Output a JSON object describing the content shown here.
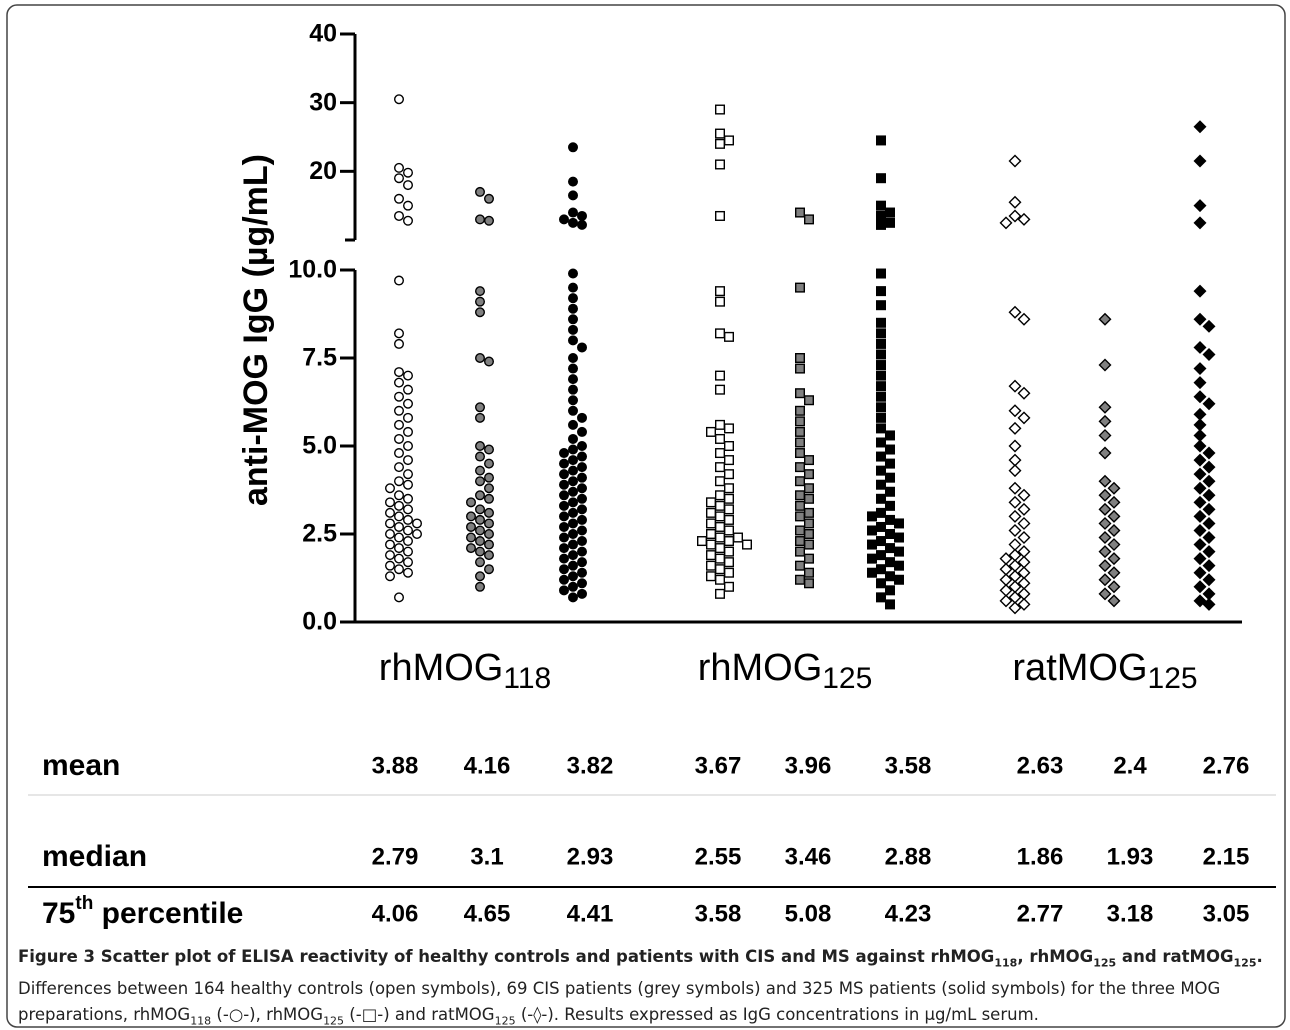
{
  "chart_data": {
    "type": "scatter",
    "ylabel": "anti-MOG IgG (µg/mL)",
    "ylim": [
      0,
      40
    ],
    "y_break": 10,
    "yticks": [
      {
        "value": 0,
        "label": "0.0"
      },
      {
        "value": 2.5,
        "label": "2.5"
      },
      {
        "value": 5,
        "label": "5.0"
      },
      {
        "value": 7.5,
        "label": "7.5"
      },
      {
        "value": 10,
        "label": "10.0"
      },
      20,
      30,
      40
    ],
    "categories": [
      {
        "base": "rhMOG",
        "sub": "118",
        "marker": "circle",
        "columns": [
          {
            "fill": "#ffffff",
            "values": [
              30.5,
              20.5,
              19.8,
              19,
              18,
              16,
              15,
              13.5,
              12.8,
              9.7,
              8.2,
              7.9,
              7.1,
              7.0,
              6.8,
              6.6,
              6.4,
              6.2,
              6.0,
              5.8,
              5.6,
              5.4,
              5.2,
              5.0,
              4.8,
              4.6,
              4.4,
              4.2,
              4.0,
              3.9,
              3.8,
              3.6,
              3.5,
              3.4,
              3.3,
              3.2,
              3.1,
              3.0,
              2.9,
              2.8,
              2.8,
              2.7,
              2.6,
              2.5,
              2.5,
              2.4,
              2.3,
              2.2,
              2.1,
              2.0,
              1.9,
              1.8,
              1.7,
              1.6,
              1.5,
              1.4,
              1.3,
              0.7
            ]
          },
          {
            "fill": "#808080",
            "values": [
              17,
              16,
              13,
              12.8,
              9.4,
              9.1,
              8.8,
              7.5,
              7.4,
              6.1,
              5.8,
              5.0,
              4.9,
              4.7,
              4.5,
              4.3,
              4.1,
              4.0,
              3.8,
              3.6,
              3.5,
              3.4,
              3.2,
              3.1,
              3.0,
              2.9,
              2.8,
              2.7,
              2.6,
              2.5,
              2.4,
              2.3,
              2.2,
              2.1,
              2.0,
              1.9,
              1.7,
              1.5,
              1.3,
              1.0
            ]
          },
          {
            "fill": "#000000",
            "values": [
              23.5,
              18.5,
              16.5,
              14,
              13.5,
              13,
              12.5,
              12.2,
              9.9,
              9.5,
              9.2,
              8.9,
              8.6,
              8.3,
              8.0,
              7.8,
              7.5,
              7.2,
              6.9,
              6.6,
              6.3,
              6.0,
              5.8,
              5.6,
              5.4,
              5.2,
              5.0,
              4.9,
              4.8,
              4.7,
              4.6,
              4.5,
              4.4,
              4.3,
              4.2,
              4.1,
              4.0,
              3.9,
              3.8,
              3.7,
              3.6,
              3.5,
              3.4,
              3.3,
              3.2,
              3.1,
              3.0,
              2.9,
              2.8,
              2.7,
              2.6,
              2.5,
              2.4,
              2.3,
              2.2,
              2.1,
              2.0,
              1.9,
              1.8,
              1.7,
              1.6,
              1.5,
              1.4,
              1.3,
              1.2,
              1.1,
              1.0,
              0.9,
              0.8,
              0.7
            ]
          }
        ]
      },
      {
        "base": "rhMOG",
        "sub": "125",
        "marker": "square",
        "columns": [
          {
            "fill": "#ffffff",
            "values": [
              29,
              25.5,
              24.5,
              24,
              21,
              13.5,
              9.4,
              9.1,
              8.2,
              8.1,
              7.0,
              6.6,
              5.6,
              5.5,
              5.4,
              5.2,
              5.0,
              4.8,
              4.6,
              4.4,
              4.2,
              4.0,
              3.8,
              3.6,
              3.5,
              3.4,
              3.3,
              3.2,
              3.1,
              3.0,
              2.9,
              2.8,
              2.7,
              2.6,
              2.5,
              2.4,
              2.4,
              2.3,
              2.3,
              2.2,
              2.2,
              2.1,
              2.0,
              1.9,
              1.8,
              1.7,
              1.6,
              1.5,
              1.4,
              1.3,
              1.2,
              1.0,
              0.8
            ]
          },
          {
            "fill": "#808080",
            "values": [
              14,
              13,
              9.5,
              7.5,
              7.2,
              6.5,
              6.3,
              6.0,
              5.7,
              5.4,
              5.1,
              4.8,
              4.6,
              4.4,
              4.2,
              4.0,
              3.8,
              3.6,
              3.5,
              3.3,
              3.1,
              3.0,
              2.8,
              2.6,
              2.5,
              2.3,
              2.2,
              2.0,
              1.8,
              1.6,
              1.4,
              1.2,
              1.1
            ]
          },
          {
            "fill": "#000000",
            "values": [
              24.5,
              19,
              15,
              14,
              13.5,
              12.5,
              12.2,
              9.9,
              9.4,
              9.0,
              8.5,
              8.2,
              7.9,
              7.6,
              7.3,
              7.0,
              6.7,
              6.4,
              6.1,
              5.8,
              5.5,
              5.3,
              5.1,
              4.9,
              4.7,
              4.5,
              4.3,
              4.1,
              3.9,
              3.7,
              3.5,
              3.3,
              3.1,
              2.9,
              2.7,
              2.5,
              2.3,
              2.1,
              1.9,
              1.7,
              1.5,
              1.3,
              1.1,
              0.9,
              0.7,
              0.5,
              3.0,
              2.8,
              2.6,
              2.4,
              2.2,
              2.0,
              1.8,
              1.6,
              1.4,
              1.2
            ]
          }
        ]
      },
      {
        "base": "ratMOG",
        "sub": "125",
        "marker": "diamond",
        "columns": [
          {
            "fill": "#ffffff",
            "values": [
              21.5,
              15.5,
              13.5,
              13,
              12.5,
              8.8,
              8.6,
              6.7,
              6.5,
              6.0,
              5.8,
              5.5,
              5.0,
              4.6,
              4.3,
              3.8,
              3.6,
              3.4,
              3.2,
              3.0,
              2.8,
              2.6,
              2.4,
              2.2,
              2.0,
              1.9,
              1.8,
              1.7,
              1.6,
              1.5,
              1.4,
              1.3,
              1.2,
              1.1,
              1.0,
              0.9,
              0.8,
              0.7,
              0.6,
              0.5,
              0.4
            ]
          },
          {
            "fill": "#808080",
            "values": [
              8.6,
              7.3,
              6.1,
              5.7,
              5.3,
              4.8,
              4.0,
              3.8,
              3.6,
              3.4,
              3.2,
              3.0,
              2.8,
              2.6,
              2.4,
              2.2,
              2.0,
              1.8,
              1.6,
              1.4,
              1.2,
              1.0,
              0.8,
              0.6
            ]
          },
          {
            "fill": "#000000",
            "values": [
              26.5,
              21.5,
              15,
              12.5,
              9.4,
              8.6,
              8.4,
              7.8,
              7.6,
              7.2,
              6.8,
              6.4,
              6.2,
              5.9,
              5.6,
              5.3,
              5.0,
              4.8,
              4.6,
              4.4,
              4.2,
              4.0,
              3.8,
              3.6,
              3.4,
              3.2,
              3.0,
              2.8,
              2.6,
              2.4,
              2.2,
              2.0,
              1.8,
              1.6,
              1.4,
              1.2,
              1.0,
              0.8,
              0.6,
              0.5
            ]
          }
        ]
      }
    ],
    "table": {
      "rows": [
        {
          "label": "mean",
          "values": [
            3.88,
            4.16,
            3.82,
            3.67,
            3.96,
            3.58,
            2.63,
            2.4,
            2.76
          ]
        },
        {
          "label": "median",
          "values": [
            2.79,
            3.1,
            2.93,
            2.55,
            3.46,
            2.88,
            1.86,
            1.93,
            2.15
          ]
        },
        {
          "label": "75",
          "label_sup": "th",
          "label_rest": " percentile",
          "values": [
            4.06,
            4.65,
            4.41,
            3.58,
            5.08,
            4.23,
            2.77,
            3.18,
            3.05
          ]
        }
      ]
    }
  },
  "caption": {
    "title": [
      "Figure 3 Scatter plot of ELISA reactivity of healthy controls and patients with CIS and MS against rhMOG",
      "118",
      ", rhMOG",
      "125",
      " and ratMOG",
      "125",
      "."
    ],
    "body": [
      " Differences between 164 healthy controls (open symbols), 69 CIS patients (grey symbols) and 325 MS patients (solid symbols) for the three MOG preparations, rhMOG",
      "118",
      " (-○-), rhMOG",
      "125",
      " (-□-) and ratMOG",
      "125",
      " (-◊-). Results expressed as IgG concentrations in µg/mL serum."
    ]
  }
}
